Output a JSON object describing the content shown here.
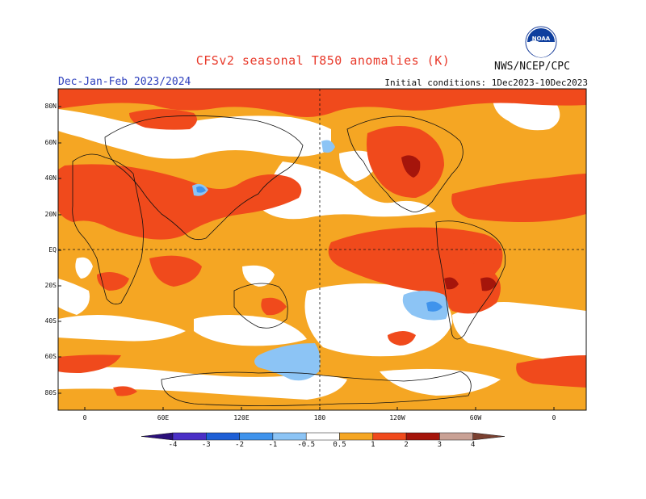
{
  "title": "CFSv2 seasonal T850 anomalies (K)",
  "season": "Dec-Jan-Feb 2023/2024",
  "agency": "NWS/NCEP/CPC",
  "initial_conditions": "Initial conditions: 1Dec2023-10Dec2023",
  "logo": {
    "text": "NOAA",
    "icon": "noaa-logo"
  },
  "lat_labels": [
    "80N",
    "60N",
    "40N",
    "20N",
    "EQ",
    "20S",
    "40S",
    "60S",
    "80S"
  ],
  "lon_labels": [
    "0",
    "60E",
    "120E",
    "180",
    "120W",
    "60W",
    "0"
  ],
  "colorbar": {
    "labels": [
      "-4",
      "-3",
      "-2",
      "-1",
      "-0.5",
      "0.5",
      "1",
      "2",
      "3",
      "4"
    ],
    "colors": {
      "lt_-4": "#2a0f7a",
      "-4_-3": "#4a2fc6",
      "-3_-2": "#1e5fd6",
      "-2_-1": "#3f93ec",
      "-1_-0.5": "#8cc4f5",
      "-0.5_0.5": "#ffffff",
      "0.5_1": "#f5a623",
      "1_2": "#f04a1c",
      "2_3": "#a5150b",
      "3_4": "#c9a195",
      "gt_4": "#7a4030"
    }
  },
  "colors": {
    "title": "#e8392a",
    "season": "#2d3fbd",
    "warm_light": "#f5a623",
    "warm": "#f04a1c",
    "warm_dark": "#a5150b",
    "cool": "#8cc4f5",
    "cool_mid": "#3f93ec",
    "cool_dark": "#1e5fd6"
  }
}
